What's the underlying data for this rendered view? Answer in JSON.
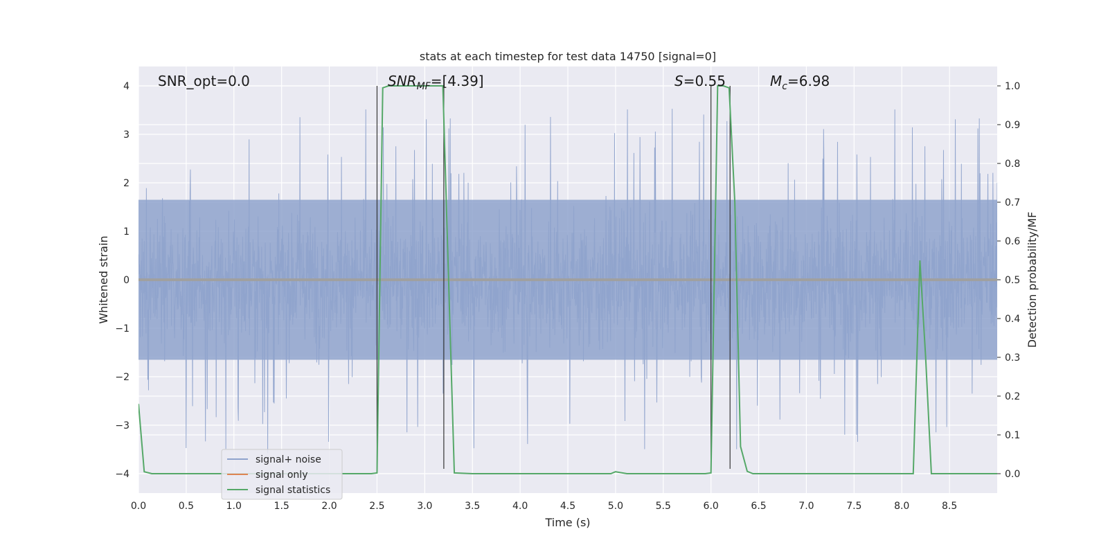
{
  "chart_data": {
    "type": "line",
    "title": "stats at each timestep for test data 14750 [signal=0]",
    "xlabel": "Time (s)",
    "ylabel_left": "Whitened strain",
    "ylabel_right": "Detection probability/MF",
    "xlim": [
      0.0,
      9.0
    ],
    "ylim_left": [
      -4.4,
      4.4
    ],
    "ylim_right": [
      -0.05,
      1.05
    ],
    "xticks": [
      "0.0",
      "0.5",
      "1.0",
      "1.5",
      "2.0",
      "2.5",
      "3.0",
      "3.5",
      "4.0",
      "4.5",
      "5.0",
      "5.5",
      "6.0",
      "6.5",
      "7.0",
      "7.5",
      "8.0",
      "8.5"
    ],
    "yticks_left": [
      "4",
      "3",
      "2",
      "1",
      "0",
      "−1",
      "−2",
      "−3",
      "−4"
    ],
    "yticks_right": [
      "1.0",
      "0.9",
      "0.8",
      "0.7",
      "0.6",
      "0.5",
      "0.4",
      "0.3",
      "0.2",
      "0.1",
      "0.0"
    ],
    "grid": true,
    "annotations": {
      "snr_opt": "SNR_opt=0.0",
      "snr_mf_main": "SNR",
      "snr_mf_sub": "MF",
      "snr_mf_value": "=[4.39]",
      "s_main": "S",
      "s_value": "=0.55",
      "mc_main": "M",
      "mc_sub": "c",
      "mc_value": "=6.98"
    },
    "vertical_lines_x": [
      2.5,
      3.2,
      6.0,
      6.2
    ],
    "legend": {
      "placement": "lower-left",
      "entries": [
        "signal+ noise",
        "signal only",
        "signal statistics"
      ]
    },
    "series": [
      {
        "name": "signal+ noise",
        "color": "#8fa3cc",
        "axis": "left",
        "note_shape": "dense noise band, typical amplitude about ±1.6, spikes up to about ±3.6",
        "band_extent": [
          -1.65,
          1.65
        ],
        "peak_extent": [
          -3.9,
          3.6
        ]
      },
      {
        "name": "signal only",
        "color": "#dd8452",
        "axis": "left",
        "x": [
          0.0,
          9.0
        ],
        "y": [
          0.0,
          0.0
        ]
      },
      {
        "name": "signal statistics",
        "color": "#55a868",
        "axis": "right",
        "x": [
          0.0,
          0.06,
          0.14,
          0.5,
          1.0,
          1.5,
          2.0,
          2.44,
          2.5,
          2.56,
          2.62,
          3.0,
          3.19,
          3.25,
          3.31,
          3.5,
          4.0,
          4.5,
          4.95,
          5.0,
          5.12,
          5.5,
          5.94,
          6.0,
          6.07,
          6.13,
          6.19,
          6.25,
          6.31,
          6.38,
          6.44,
          7.0,
          7.5,
          8.0,
          8.12,
          8.19,
          8.25,
          8.31,
          8.38,
          9.0
        ],
        "y": [
          0.18,
          0.005,
          0.0,
          0.0,
          0.0,
          0.0,
          0.0,
          0.0,
          0.002,
          0.995,
          1.0,
          1.0,
          1.0,
          0.5,
          0.002,
          0.0,
          0.0,
          0.0,
          0.0,
          0.005,
          0.0,
          0.0,
          0.0,
          0.002,
          1.0,
          1.0,
          0.995,
          0.7,
          0.07,
          0.006,
          0.0,
          0.0,
          0.0,
          0.0,
          0.0,
          0.55,
          0.3,
          0.0,
          0.0,
          0.0
        ]
      }
    ]
  }
}
